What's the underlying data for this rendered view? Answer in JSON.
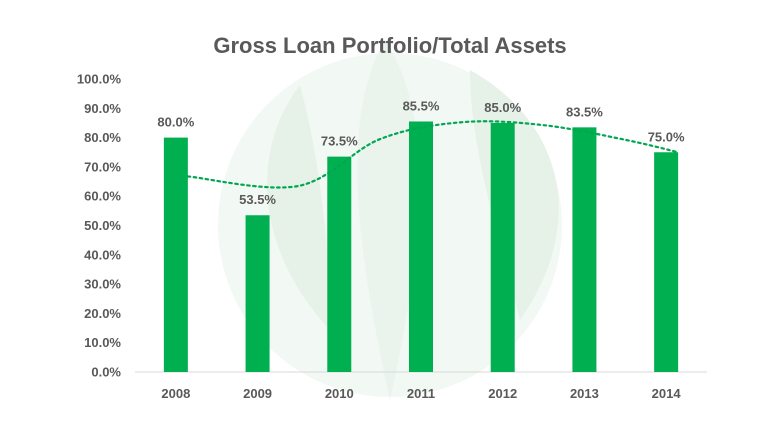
{
  "chart_data": {
    "type": "bar",
    "title": "Gross Loan Portfolio/Total Assets",
    "xlabel": "",
    "ylabel": "",
    "categories": [
      "2008",
      "2009",
      "2010",
      "2011",
      "2012",
      "2013",
      "2014"
    ],
    "values": [
      80.0,
      53.5,
      73.5,
      85.5,
      85.0,
      83.5,
      75.0
    ],
    "data_labels": [
      "80.0%",
      "53.5%",
      "73.5%",
      "85.5%",
      "85.0%",
      "83.5%",
      "75.0%"
    ],
    "y_ticks": [
      "0.0%",
      "10.0%",
      "20.0%",
      "30.0%",
      "40.0%",
      "50.0%",
      "60.0%",
      "70.0%",
      "80.0%",
      "90.0%",
      "100.0%"
    ],
    "ylim": [
      0,
      100
    ],
    "grid": false,
    "legend": "none",
    "trendline": "dotted moving average",
    "colors": {
      "bar": "#00b050",
      "trend": "#00a651",
      "text": "#595959",
      "watermark": "#e8f3ea"
    }
  }
}
